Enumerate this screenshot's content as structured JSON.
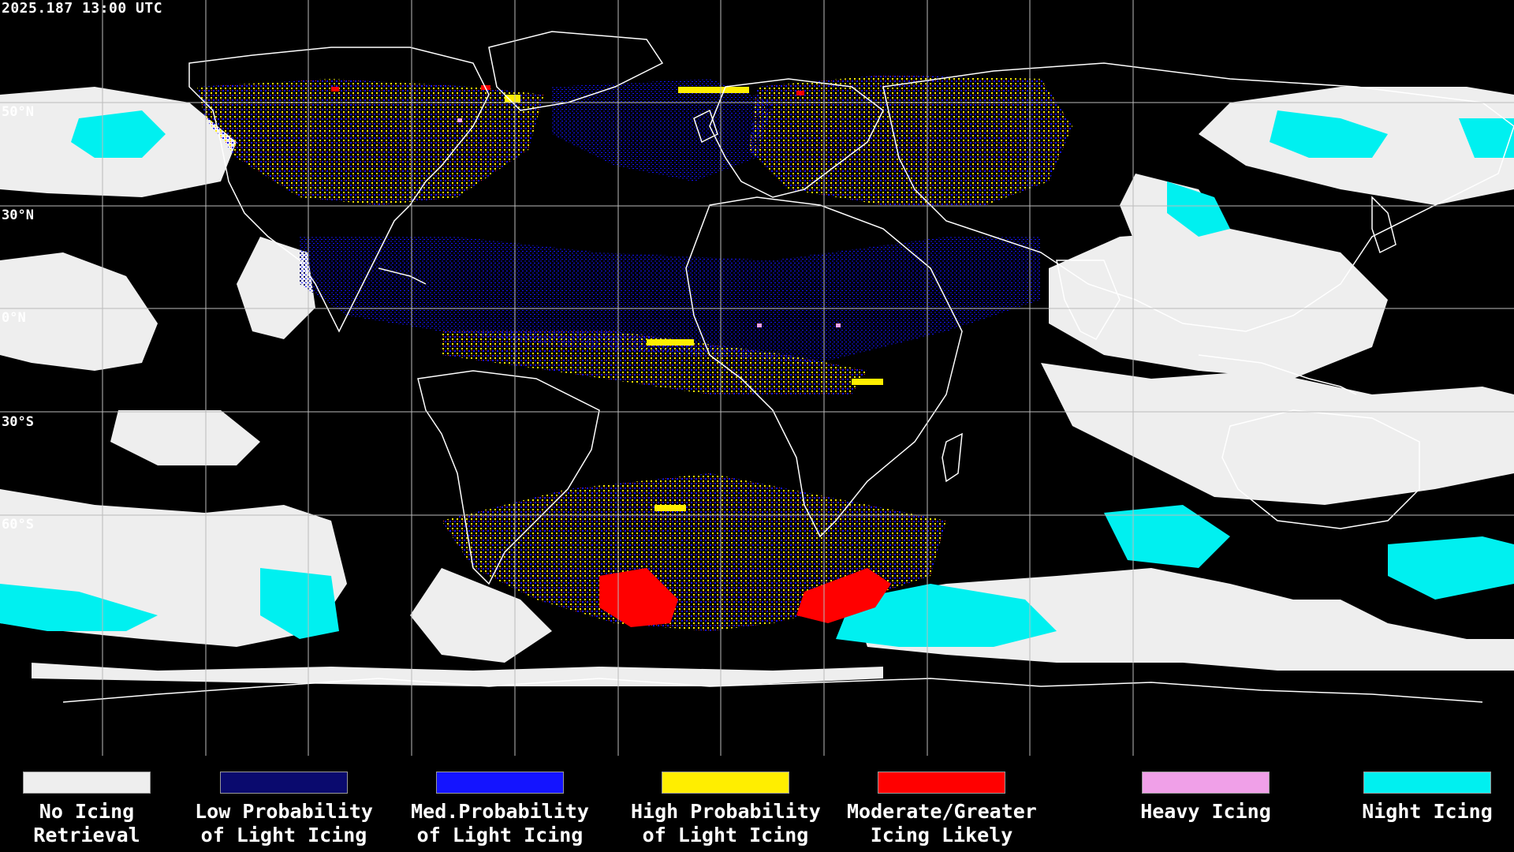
{
  "header": {
    "timestamp": "2025.187 13:00 UTC"
  },
  "lat_labels": [
    "50°N",
    "30°N",
    "0°N",
    "30°S",
    "60°S"
  ],
  "legend": {
    "items": [
      {
        "line1": "No Icing",
        "line2": "Retrieval",
        "color": "#eeeeee"
      },
      {
        "line1": "Low Probability",
        "line2": "of Light Icing",
        "color": "#0a0a6e"
      },
      {
        "line1": "Med.Probability",
        "line2": "of Light Icing",
        "color": "#1414ff"
      },
      {
        "line1": "High Probability",
        "line2": "of Light Icing",
        "color": "#ffee00"
      },
      {
        "line1": "Moderate/Greater",
        "line2": "Icing Likely",
        "color": "#ff0000"
      },
      {
        "line1": "Heavy Icing",
        "line2": "",
        "color": "#f0a0e8"
      },
      {
        "line1": "Night Icing",
        "line2": "",
        "color": "#00f0f0"
      }
    ]
  }
}
